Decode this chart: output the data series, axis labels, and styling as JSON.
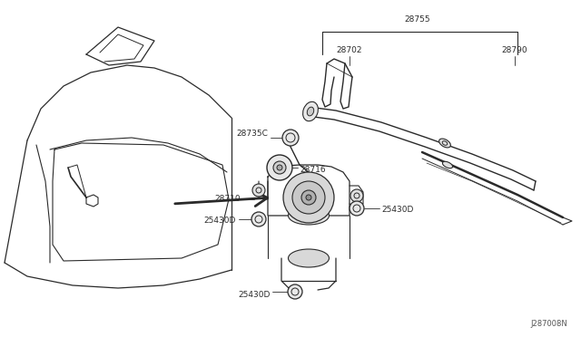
{
  "bg_color": "#ffffff",
  "line_color": "#2a2a2a",
  "text_color": "#2a2a2a",
  "fig_width": 6.4,
  "fig_height": 3.72,
  "dpi": 100,
  "diagram_id": "J287008N",
  "label_28755": "28755",
  "label_28702": "28702",
  "label_28790": "28790",
  "label_28735C": "28735C",
  "label_28716": "28716",
  "label_28710": "28710",
  "label_25430D": "25430D",
  "font_size": 6.5,
  "font_family": "DejaVu Sans"
}
